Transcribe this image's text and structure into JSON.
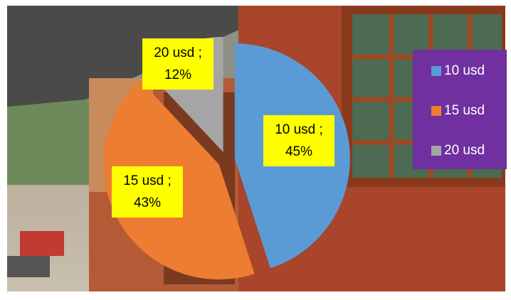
{
  "chart_data": {
    "type": "pie",
    "categories": [
      "10 usd",
      "15 usd",
      "20 usd"
    ],
    "values": [
      45,
      43,
      12
    ],
    "value_labels": [
      "45%",
      "43%",
      "12%"
    ],
    "data_label_names": [
      "10 usd ;",
      "15 usd ;",
      "20 usd ;"
    ],
    "colors": [
      "#5b9bd5",
      "#ed7d31",
      "#a5a5a5"
    ],
    "legend": "right"
  }
}
